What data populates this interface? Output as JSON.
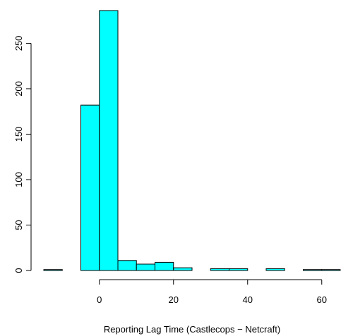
{
  "chart_data": {
    "type": "histogram",
    "xlabel": "Reporting Lag Time (Castlecops − Netcraft)",
    "bins": [
      -15,
      -10,
      -5,
      0,
      5,
      10,
      15,
      20,
      25,
      30,
      35,
      40,
      45,
      50,
      55,
      60,
      65
    ],
    "values": [
      1,
      0,
      182,
      286,
      11,
      7,
      9,
      3,
      0,
      2,
      2,
      0,
      2,
      0,
      1,
      1
    ],
    "color": "#00ffff",
    "xlim": [
      -15,
      65
    ],
    "ylim": [
      0,
      286
    ],
    "xticks": [
      0,
      20,
      40,
      60
    ],
    "yticks": [
      0,
      50,
      100,
      150,
      200,
      250
    ]
  }
}
